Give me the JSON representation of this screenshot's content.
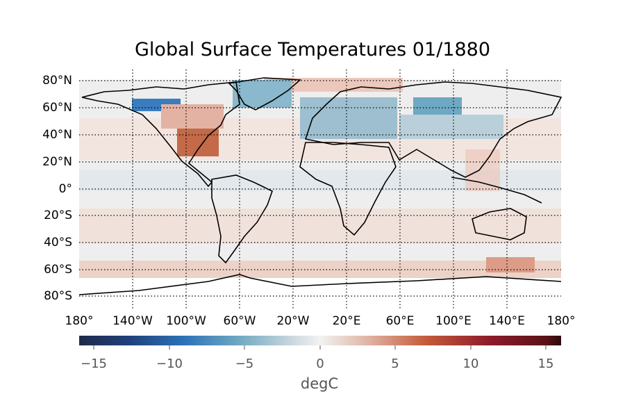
{
  "title": "Global Surface Temperatures 01/1880",
  "map": {
    "projection": "equirectangular",
    "lat_labels": [
      "80°N",
      "60°N",
      "40°N",
      "20°N",
      "0°",
      "20°S",
      "40°S",
      "60°S",
      "80°S"
    ],
    "lon_labels": [
      "180°",
      "140°W",
      "100°W",
      "60°W",
      "20°W",
      "20°E",
      "60°E",
      "100°E",
      "140°E",
      "180°"
    ],
    "gridlines": "dotted",
    "colors": {
      "cold_extreme": "#1f2a4a",
      "cold": "#2e73b8",
      "cool": "#7fb2c9",
      "neutral": "#f2f2f2",
      "warm": "#d9826a",
      "hot": "#8e1b2c",
      "hot_extreme": "#2a0a0a",
      "coastline": "#000000"
    }
  },
  "colorbar": {
    "ticks": [
      "−15",
      "−10",
      "−5",
      "0",
      "5",
      "10",
      "15"
    ],
    "range": [
      -16,
      16
    ],
    "unit_label": "degC"
  }
}
